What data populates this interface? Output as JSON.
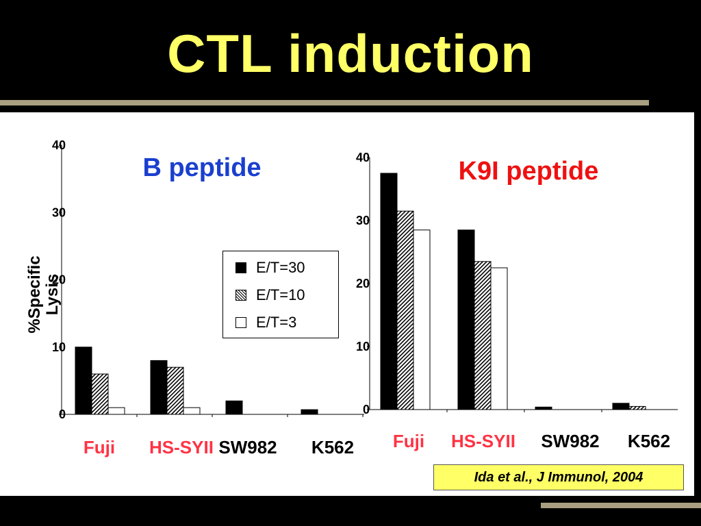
{
  "slide": {
    "title": "CTL induction",
    "citation": "Ida et al., J Immunol, 2004"
  },
  "legend": {
    "items": [
      {
        "label": "E/T=30",
        "style": "solid-black"
      },
      {
        "label": "E/T=10",
        "style": "hatched"
      },
      {
        "label": "E/T=3",
        "style": "white"
      }
    ]
  },
  "colors": {
    "title": "#ffff66",
    "blue_title": "#1a3fcf",
    "red_title": "#ee1111",
    "red_label": "#ff3344",
    "citation_bg": "#ffff66"
  },
  "chart_data": [
    {
      "type": "bar",
      "title": "B peptide",
      "ylabel": "%Specific Lysis",
      "ylim": [
        0,
        40
      ],
      "yticks": [
        "0",
        "10",
        "20",
        "30",
        "40"
      ],
      "categories": [
        "Fuji",
        "HS-SYII",
        "SW982",
        "K562"
      ],
      "category_colors": [
        "#ff3344",
        "#ff3344",
        "#000000",
        "#000000"
      ],
      "series": [
        {
          "name": "E/T=30",
          "values": [
            10,
            8,
            2,
            0.7
          ]
        },
        {
          "name": "E/T=10",
          "values": [
            6,
            7,
            0,
            0
          ]
        },
        {
          "name": "E/T=3",
          "values": [
            1,
            1,
            0,
            0
          ]
        }
      ]
    },
    {
      "type": "bar",
      "title": "K9I peptide",
      "ylim": [
        0,
        40
      ],
      "yticks": [
        "0",
        "10",
        "20",
        "30",
        "40"
      ],
      "categories": [
        "Fuji",
        "HS-SYII",
        "SW982",
        "K562"
      ],
      "category_colors": [
        "#ff3344",
        "#ff3344",
        "#000000",
        "#000000"
      ],
      "series": [
        {
          "name": "E/T=30",
          "values": [
            37.5,
            28.5,
            0.4,
            1.0
          ]
        },
        {
          "name": "E/T=10",
          "values": [
            31.5,
            23.5,
            0,
            0.5
          ]
        },
        {
          "name": "E/T=3",
          "values": [
            28.5,
            22.5,
            0,
            0
          ]
        }
      ]
    }
  ]
}
